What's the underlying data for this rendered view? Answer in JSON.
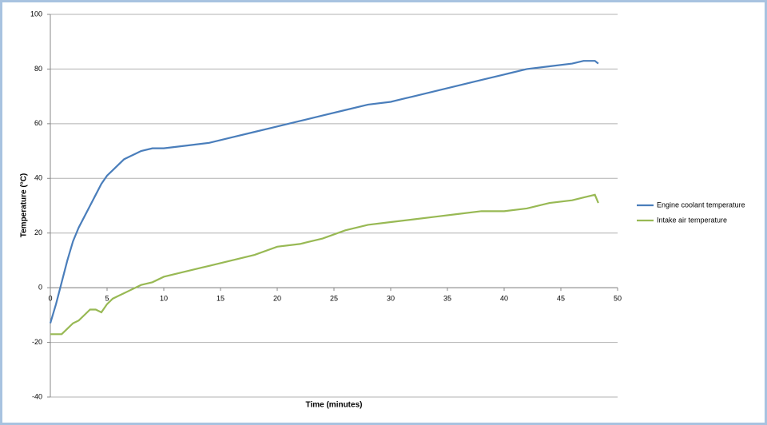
{
  "chart_data": {
    "type": "line",
    "x_label": "Time (minutes)",
    "y_label": "Temperature (°C)",
    "x": [
      0,
      0.5,
      1,
      1.5,
      2,
      2.5,
      3,
      3.5,
      4,
      4.5,
      5,
      5.5,
      6,
      6.5,
      7,
      7.5,
      8,
      9,
      10,
      12,
      14,
      16,
      18,
      20,
      22,
      24,
      26,
      28,
      30,
      32,
      34,
      36,
      38,
      40,
      42,
      44,
      46,
      47,
      48,
      48.3
    ],
    "series": [
      {
        "name": "Engine coolant temperature",
        "color": "#4a7ebb",
        "values": [
          -13,
          -6,
          2,
          10,
          17,
          22,
          26,
          30,
          34,
          38,
          41,
          43,
          45,
          47,
          48,
          49,
          50,
          51,
          51,
          52,
          53,
          55,
          57,
          59,
          61,
          63,
          65,
          67,
          68,
          70,
          72,
          74,
          76,
          78,
          80,
          81,
          82,
          83,
          83,
          82
        ]
      },
      {
        "name": "Intake air temperature",
        "color": "#98b954",
        "values": [
          -17,
          -17,
          -17,
          -15,
          -13,
          -12,
          -10,
          -8,
          -8,
          -9,
          -6,
          -4,
          -3,
          -2,
          -1,
          0,
          1,
          2,
          4,
          6,
          8,
          10,
          12,
          15,
          16,
          18,
          21,
          23,
          24,
          25,
          26,
          27,
          28,
          28,
          29,
          31,
          32,
          33,
          34,
          31
        ]
      }
    ],
    "xlim": [
      0,
      50
    ],
    "xticks": [
      0,
      5,
      10,
      15,
      20,
      25,
      30,
      35,
      40,
      45,
      50
    ],
    "ylim": [
      -40,
      100
    ],
    "yticks": [
      -40,
      -20,
      0,
      20,
      40,
      60,
      80,
      100
    ],
    "grid": true,
    "legend": "right"
  }
}
